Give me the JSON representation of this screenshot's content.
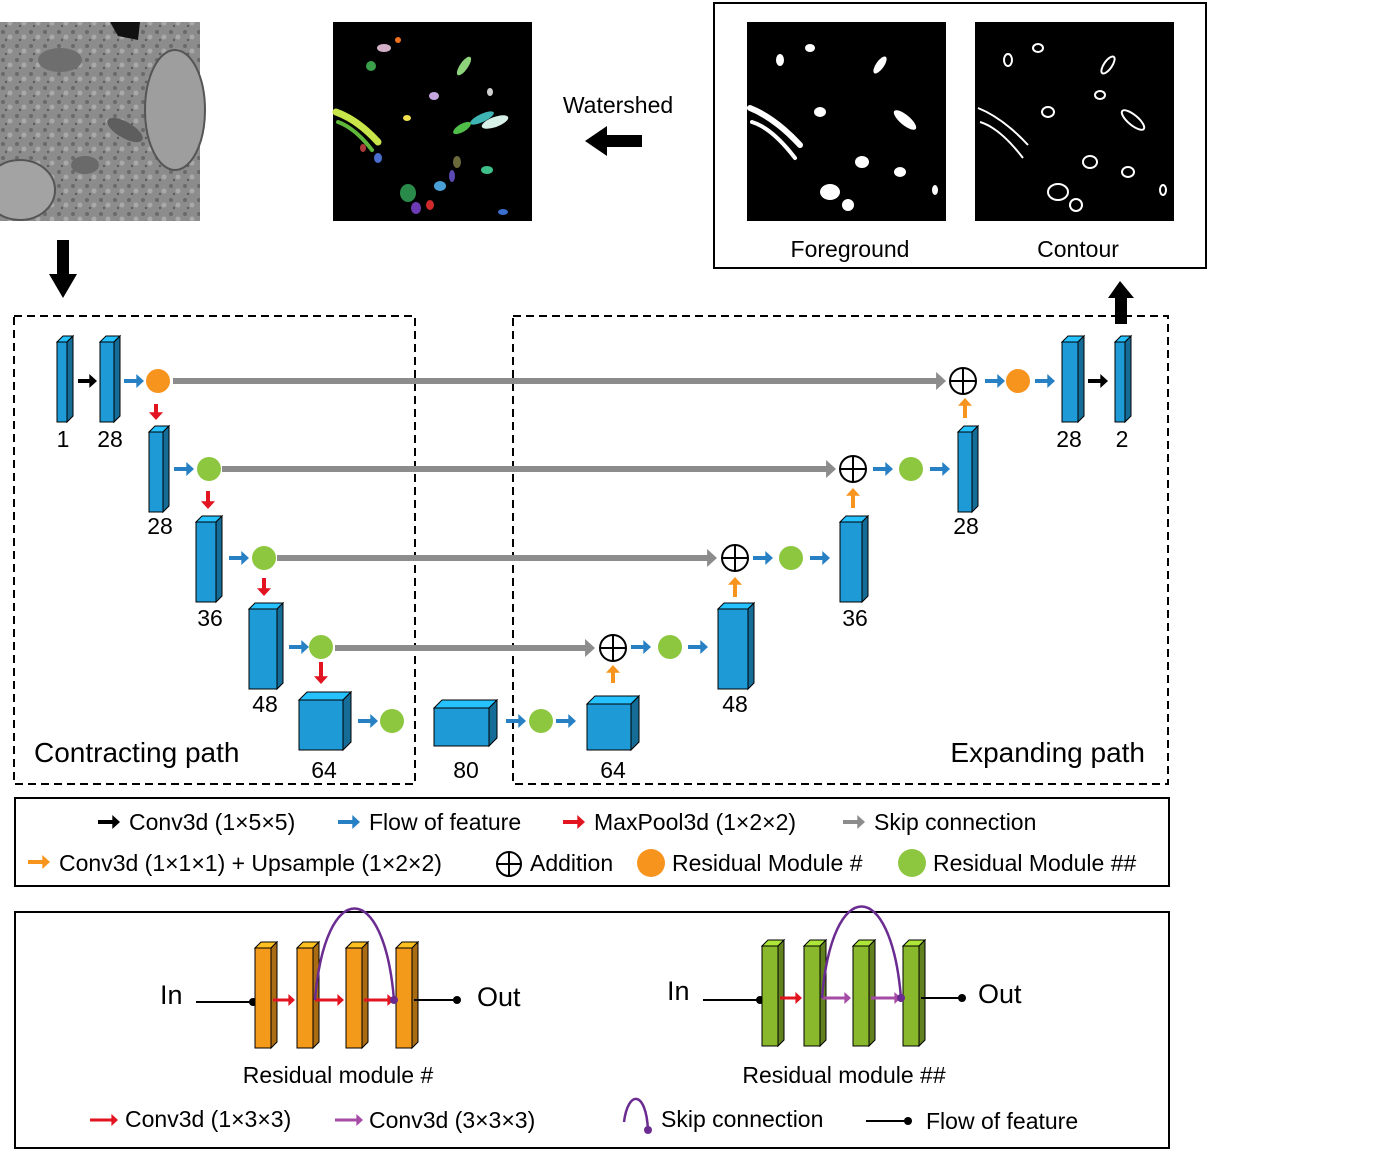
{
  "colors": {
    "block_blue": "#1e9ad6",
    "block_orange": "#f39a1b",
    "block_green": "#8ab82d",
    "residual_orange": "#f7941d",
    "residual_green": "#8dc63f",
    "arrow_black": "#000000",
    "arrow_blue": "#2780c4",
    "arrow_red": "#e2141f",
    "arrow_gray": "#8c8c8c",
    "arrow_orange": "#f7941d",
    "arrow_purple": "#a64ca6",
    "skip_arc_purple": "#6a2c91"
  },
  "top": {
    "watershed_label": "Watershed",
    "foreground_label": "Foreground",
    "contour_label": "Contour"
  },
  "network": {
    "contracting_label": "Contracting path",
    "expanding_label": "Expanding path",
    "channels": {
      "in1": "1",
      "in28": "28",
      "enc2": "28",
      "enc3": "36",
      "enc4": "48",
      "enc5": "64",
      "bottleneck": "80",
      "dec5": "64",
      "dec4": "48",
      "dec3": "36",
      "dec2": "28",
      "out28": "28",
      "out2": "2"
    }
  },
  "legend": {
    "conv3d_155": "Conv3d (1×5×5)",
    "flow": "Flow of feature",
    "maxpool": "MaxPool3d (1×2×2)",
    "skip": "Skip connection",
    "upsample": "Conv3d (1×1×1) + Upsample (1×2×2)",
    "addition": "Addition",
    "res1": "Residual Module #",
    "res2": "Residual Module ##"
  },
  "modules": {
    "in_label": "In",
    "out_label": "Out",
    "res1_caption": "Residual module #",
    "res2_caption": "Residual module ##",
    "conv133": "Conv3d (1×3×3)",
    "conv333": "Conv3d (3×3×3)",
    "skip": "Skip connection",
    "flow": "Flow of feature"
  }
}
